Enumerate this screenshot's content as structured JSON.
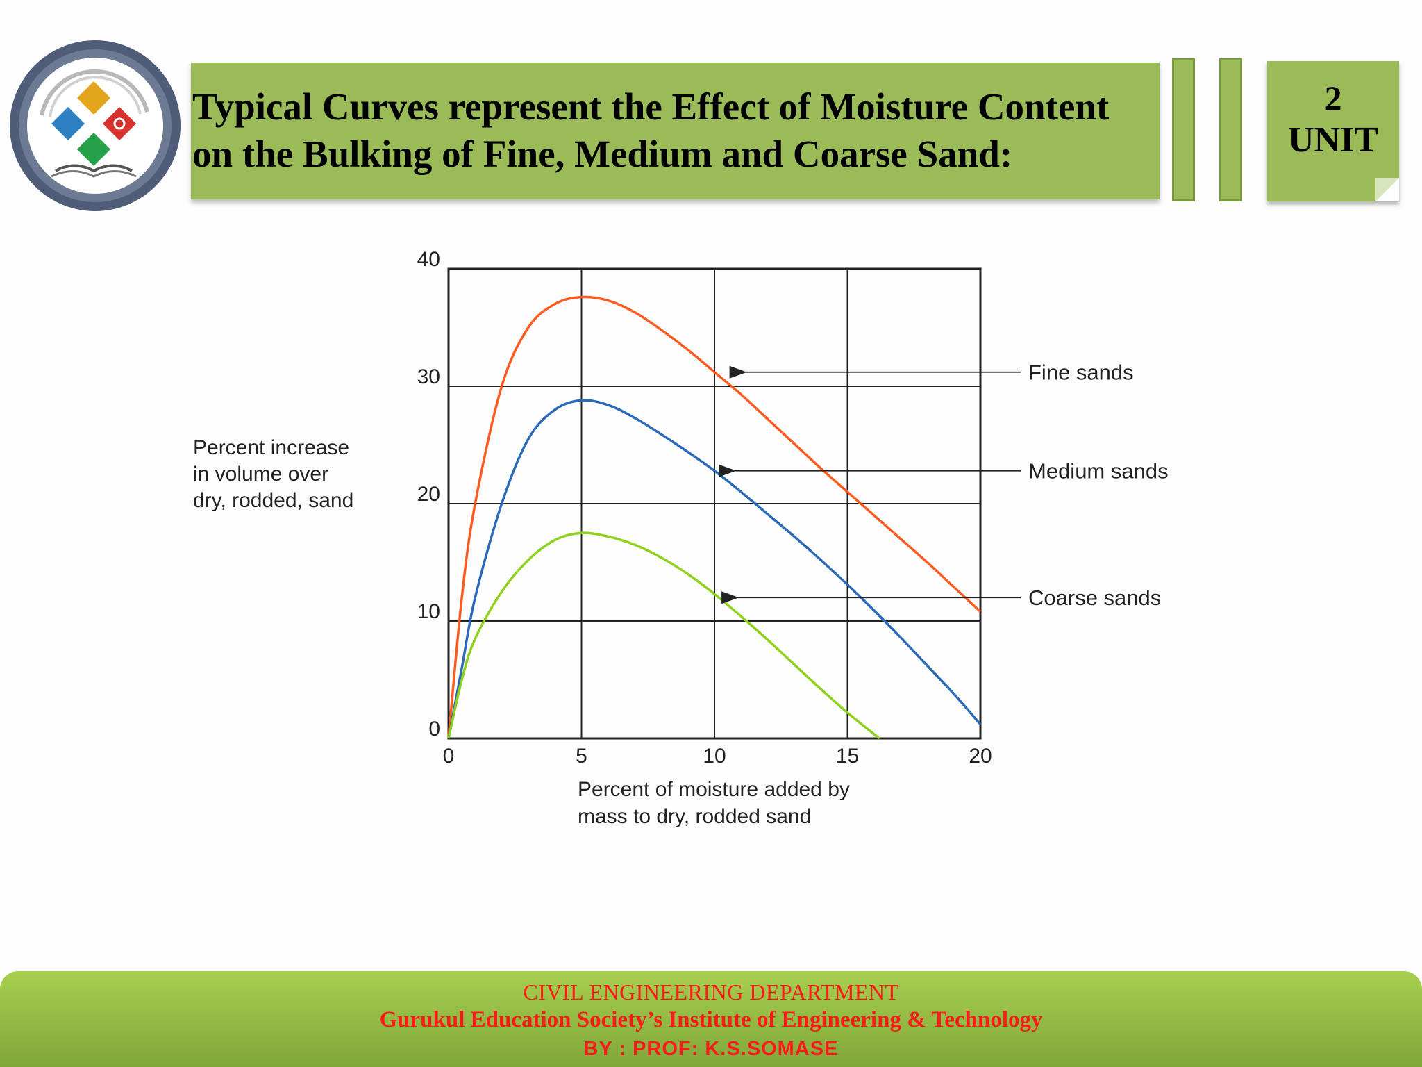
{
  "slide": {
    "title_line1": "Typical Curves represent the Effect of Moisture Content",
    "title_line2": "on the Bulking of Fine, Medium and Coarse Sand:",
    "unit_number": "2",
    "unit_label": "UNIT"
  },
  "footer": {
    "department": "CIVIL ENGINEERING DEPARTMENT",
    "institute": "Gurukul Education Society’s Institute of Engineering & Technology",
    "author": "BY : PROF: K.S.SOMASE"
  },
  "colors": {
    "accent_green": "#9bbb59",
    "footer_text": "#ff1a1a",
    "fine": "#ff5a1f",
    "medium": "#2a6ab8",
    "coarse": "#8fd11f"
  },
  "chart_data": {
    "type": "line",
    "ylabel_lines": [
      "Percent increase",
      "in volume over",
      "dry, rodded, sand"
    ],
    "xlabel_lines": [
      "Percent of moisture added by",
      "mass to dry, rodded sand"
    ],
    "xlim": [
      0,
      20
    ],
    "ylim": [
      0,
      40
    ],
    "xticks": [
      0,
      5,
      10,
      15,
      20
    ],
    "yticks": [
      0,
      10,
      20,
      30,
      40
    ],
    "grid": true,
    "series": [
      {
        "name": "Fine sands",
        "color": "#ff5a1f",
        "x": [
          0,
          0.5,
          1,
          2,
          3,
          4,
          5,
          6,
          7,
          8,
          9,
          10,
          11,
          12,
          13,
          14,
          15,
          16,
          17,
          18,
          19,
          20
        ],
        "y": [
          0,
          12,
          20,
          30,
          35,
          37,
          37.6,
          37.3,
          36.3,
          34.8,
          33.1,
          31.2,
          29.3,
          27.2,
          25.1,
          23,
          21,
          19,
          17,
          15,
          12.9,
          10.8
        ]
      },
      {
        "name": "Medium sands",
        "color": "#2a6ab8",
        "x": [
          0,
          0.5,
          1,
          2,
          3,
          4,
          5,
          6,
          7,
          8,
          9,
          10,
          11,
          12,
          13,
          14,
          15,
          16,
          17,
          18,
          19,
          20
        ],
        "y": [
          0,
          6,
          12,
          20,
          25.5,
          28,
          28.8,
          28.4,
          27.3,
          25.9,
          24.4,
          22.8,
          21,
          19.1,
          17.2,
          15.2,
          13.1,
          10.9,
          8.6,
          6.2,
          3.8,
          1.2
        ]
      },
      {
        "name": "Coarse sands",
        "color": "#8fd11f",
        "x": [
          0,
          0.5,
          1,
          2,
          3,
          4,
          5,
          6,
          7,
          8,
          9,
          10,
          11,
          12,
          13,
          14,
          15,
          16.2
        ],
        "y": [
          0,
          5,
          8.5,
          12.5,
          15.2,
          16.9,
          17.5,
          17.2,
          16.5,
          15.4,
          14,
          12.3,
          10.4,
          8.4,
          6.3,
          4.2,
          2.2,
          0
        ]
      }
    ],
    "annotations": [
      {
        "text": "Fine sands",
        "x": 10.6,
        "y": 31.2
      },
      {
        "text": "Medium sands",
        "x": 10.2,
        "y": 22.8
      },
      {
        "text": "Coarse sands",
        "x": 10.3,
        "y": 12
      }
    ]
  }
}
